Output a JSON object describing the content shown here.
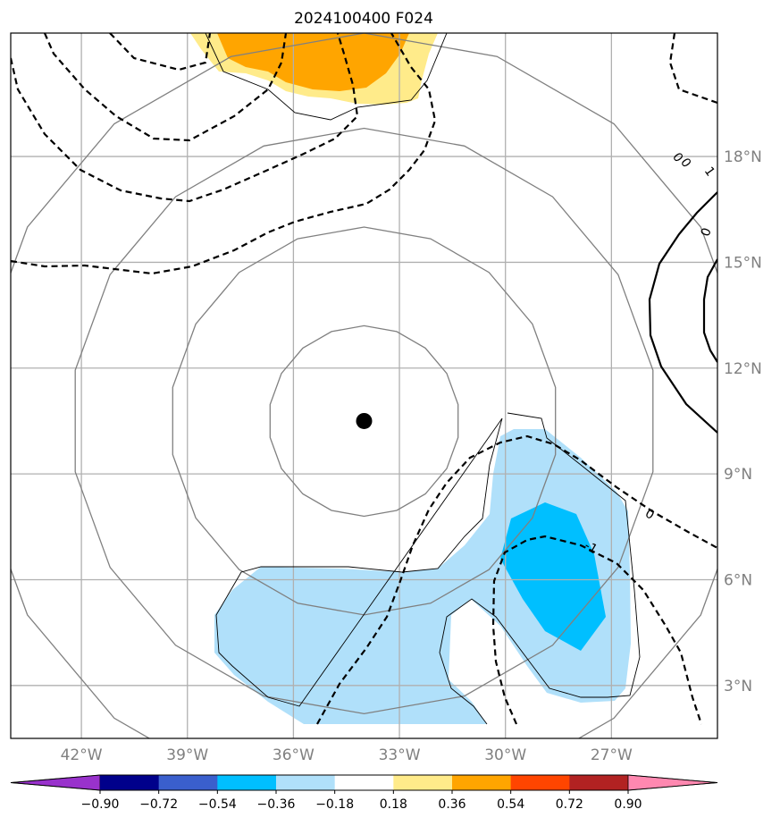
{
  "title": "2024100400 F024",
  "map": {
    "lon_range": [
      -44,
      -24
    ],
    "lat_range": [
      1.5,
      21.5
    ],
    "center": {
      "lon": -34,
      "lat": 10.5
    },
    "range_rings_deg": [
      2.7,
      5.5,
      8.3,
      11.0
    ],
    "longitudes": [
      -42,
      -39,
      -36,
      -33,
      -30,
      -27
    ],
    "latitudes": [
      3,
      6,
      9,
      12,
      15,
      18
    ],
    "lon_labels": [
      "42°W",
      "39°W",
      "36°W",
      "33°W",
      "30°W",
      "27°W"
    ],
    "lat_labels": [
      "3°N",
      "6°N",
      "9°N",
      "12°N",
      "15°N",
      "18°N"
    ],
    "contour_labels": [
      "0",
      "0",
      "1",
      "0",
      "-1",
      "0"
    ],
    "colors": {
      "ring": "#808080",
      "grid": "#b0b0b0",
      "light_blue": "#b0e0fa",
      "deep_sky_blue": "#00bfff",
      "light_yellow": "#ffeb8a",
      "orange": "#ffa500"
    }
  },
  "colorbar": {
    "ticks": [
      "−0.90",
      "−0.72",
      "−0.54",
      "−0.36",
      "−0.18",
      "0.18",
      "0.36",
      "0.54",
      "0.72",
      "0.90"
    ],
    "colors": [
      "#9932cc",
      "#00008b",
      "#3a5fcd",
      "#00bfff",
      "#b0e0fa",
      "#ffffff",
      "#ffeb8a",
      "#ffa500",
      "#ff4500",
      "#b22222",
      "#ff88b0"
    ]
  }
}
